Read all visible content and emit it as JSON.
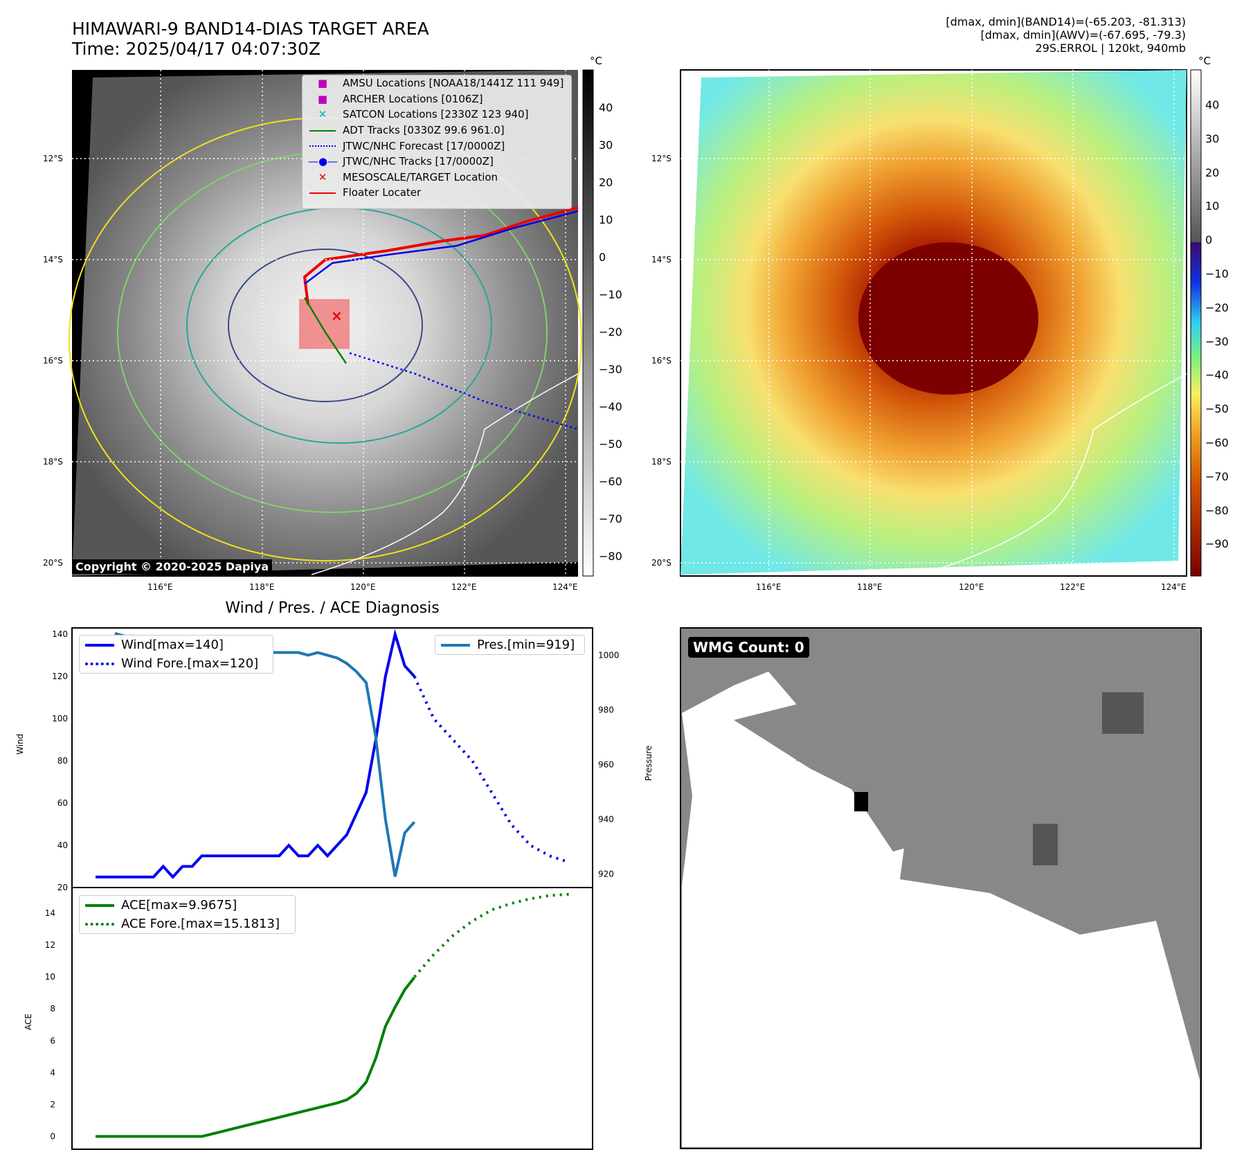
{
  "header": {
    "title_line1": "HIMAWARI-9 BAND14-DIAS TARGET AREA",
    "title_line2": "Time: 2025/04/17 04:07:30Z",
    "info_line1": "[dmax, dmin](BAND14)=(-65.203, -81.313)",
    "info_line2": "[dmax, dmin](AWV)=(-67.695, -79.3)",
    "info_line3": "29S.ERROL | 120kt, 940mb"
  },
  "map": {
    "lat_labels": [
      "12°S",
      "14°S",
      "16°S",
      "18°S",
      "20°S"
    ],
    "lon_labels": [
      "116°E",
      "118°E",
      "120°E",
      "122°E",
      "124°E"
    ],
    "copyright": "Copyright © 2020-2025 Dapiya",
    "legend": [
      {
        "label": "AMSU Locations [NOAA18/1441Z 111 949]",
        "color": "#c000c0",
        "marker": "square"
      },
      {
        "label": "ARCHER Locations [0106Z]",
        "color": "#c000c0",
        "marker": "square"
      },
      {
        "label": "SATCON Locations [2330Z 123 940]",
        "color": "#00b0b0",
        "marker": "x"
      },
      {
        "label": "ADT Tracks [0330Z 99.6 961.0]",
        "color": "#008000",
        "marker": "line"
      },
      {
        "label": "JTWC/NHC Forecast [17/0000Z]",
        "color": "#0000ee",
        "marker": "dotted"
      },
      {
        "label": "JTWC/NHC Tracks [17/0000Z]",
        "color": "#0000ee",
        "marker": "line-dot"
      },
      {
        "label": "MESOSCALE/TARGET Location",
        "color": "#ee0000",
        "marker": "x"
      },
      {
        "label": "Floater Locater",
        "color": "#ee0000",
        "marker": "line"
      }
    ]
  },
  "colorbar_left": {
    "unit": "°C",
    "ticks": [
      "40",
      "30",
      "20",
      "10",
      "0",
      "−10",
      "−20",
      "−30",
      "−40",
      "−50",
      "−60",
      "−70",
      "−80"
    ]
  },
  "colorbar_right": {
    "unit": "°C",
    "ticks": [
      "40",
      "30",
      "20",
      "10",
      "0",
      "−10",
      "−20",
      "−30",
      "−40",
      "−50",
      "−60",
      "−70",
      "−80",
      "−90"
    ]
  },
  "chart_data": [
    {
      "type": "line",
      "title": "Wind / Pres. / ACE Diagnosis",
      "ylabel": "Wind",
      "y2label": "Pressure",
      "ylim": [
        20,
        143
      ],
      "y2lim": [
        915,
        1010
      ],
      "yticks": [
        "140",
        "120",
        "100",
        "80",
        "60",
        "40",
        "20"
      ],
      "y2ticks": [
        "1000",
        "980",
        "960",
        "940",
        "920"
      ],
      "series": [
        {
          "name": "Wind[max=140]",
          "style": "solid",
          "color": "#0000ee",
          "x": [
            0,
            1,
            2,
            3,
            4,
            5,
            6,
            7,
            8,
            9,
            10,
            11,
            12,
            13,
            14,
            15,
            16,
            17,
            18,
            19,
            20,
            21,
            22,
            23,
            24,
            25,
            26,
            27,
            28,
            29,
            30,
            31,
            32,
            33
          ],
          "values": [
            25,
            25,
            25,
            25,
            25,
            25,
            25,
            30,
            25,
            30,
            30,
            35,
            35,
            35,
            35,
            35,
            35,
            35,
            35,
            35,
            40,
            35,
            35,
            40,
            35,
            40,
            45,
            55,
            65,
            90,
            120,
            140,
            125,
            120
          ]
        },
        {
          "name": "Wind Fore.[max=120]",
          "style": "dotted",
          "color": "#0000ee",
          "x": [
            33,
            35,
            37,
            39,
            41,
            43,
            45,
            47,
            49
          ],
          "values": [
            120,
            100,
            90,
            80,
            65,
            50,
            40,
            35,
            32
          ]
        },
        {
          "name": "Pres.[min=919]",
          "style": "solid",
          "color": "#1f77b4",
          "x": [
            2,
            3,
            4,
            5,
            6,
            7,
            8,
            9,
            10,
            11,
            12,
            13,
            14,
            15,
            16,
            17,
            18,
            19,
            20,
            21,
            22,
            23,
            24,
            25,
            26,
            27,
            28,
            29,
            30,
            31,
            32,
            33
          ],
          "values": [
            1008,
            1007,
            1007,
            1006,
            1005,
            1002,
            1001,
            1002,
            1001,
            1001,
            1001,
            1001,
            1001,
            1001,
            1001,
            1001,
            1001,
            1001,
            1001,
            1001,
            1000,
            1001,
            1000,
            999,
            997,
            994,
            990,
            970,
            940,
            919,
            935,
            939
          ]
        }
      ]
    },
    {
      "type": "line",
      "ylabel": "ACE",
      "ylim": [
        -0.8,
        15.6
      ],
      "yticks": [
        "14",
        "12",
        "10",
        "8",
        "6",
        "4",
        "2",
        "0"
      ],
      "series": [
        {
          "name": "ACE[max=9.9675]",
          "style": "solid",
          "color": "#008000",
          "x": [
            0,
            3,
            6,
            9,
            11,
            13,
            15,
            17,
            19,
            21,
            23,
            25,
            26,
            27,
            28,
            29,
            30,
            31,
            32,
            33
          ],
          "values": [
            0,
            0,
            0,
            0,
            0,
            0.3,
            0.6,
            0.9,
            1.2,
            1.5,
            1.8,
            2.1,
            2.3,
            2.7,
            3.4,
            4.9,
            6.9,
            8.1,
            9.2,
            9.97
          ]
        },
        {
          "name": "ACE Fore.[max=15.1813]",
          "style": "dotted",
          "color": "#008000",
          "x": [
            33,
            35,
            37,
            39,
            41,
            43,
            45,
            47,
            49
          ],
          "values": [
            10,
            11.4,
            12.6,
            13.5,
            14.2,
            14.6,
            14.9,
            15.1,
            15.18
          ]
        }
      ]
    }
  ],
  "wmg": {
    "label": "WMG Count: 0"
  }
}
